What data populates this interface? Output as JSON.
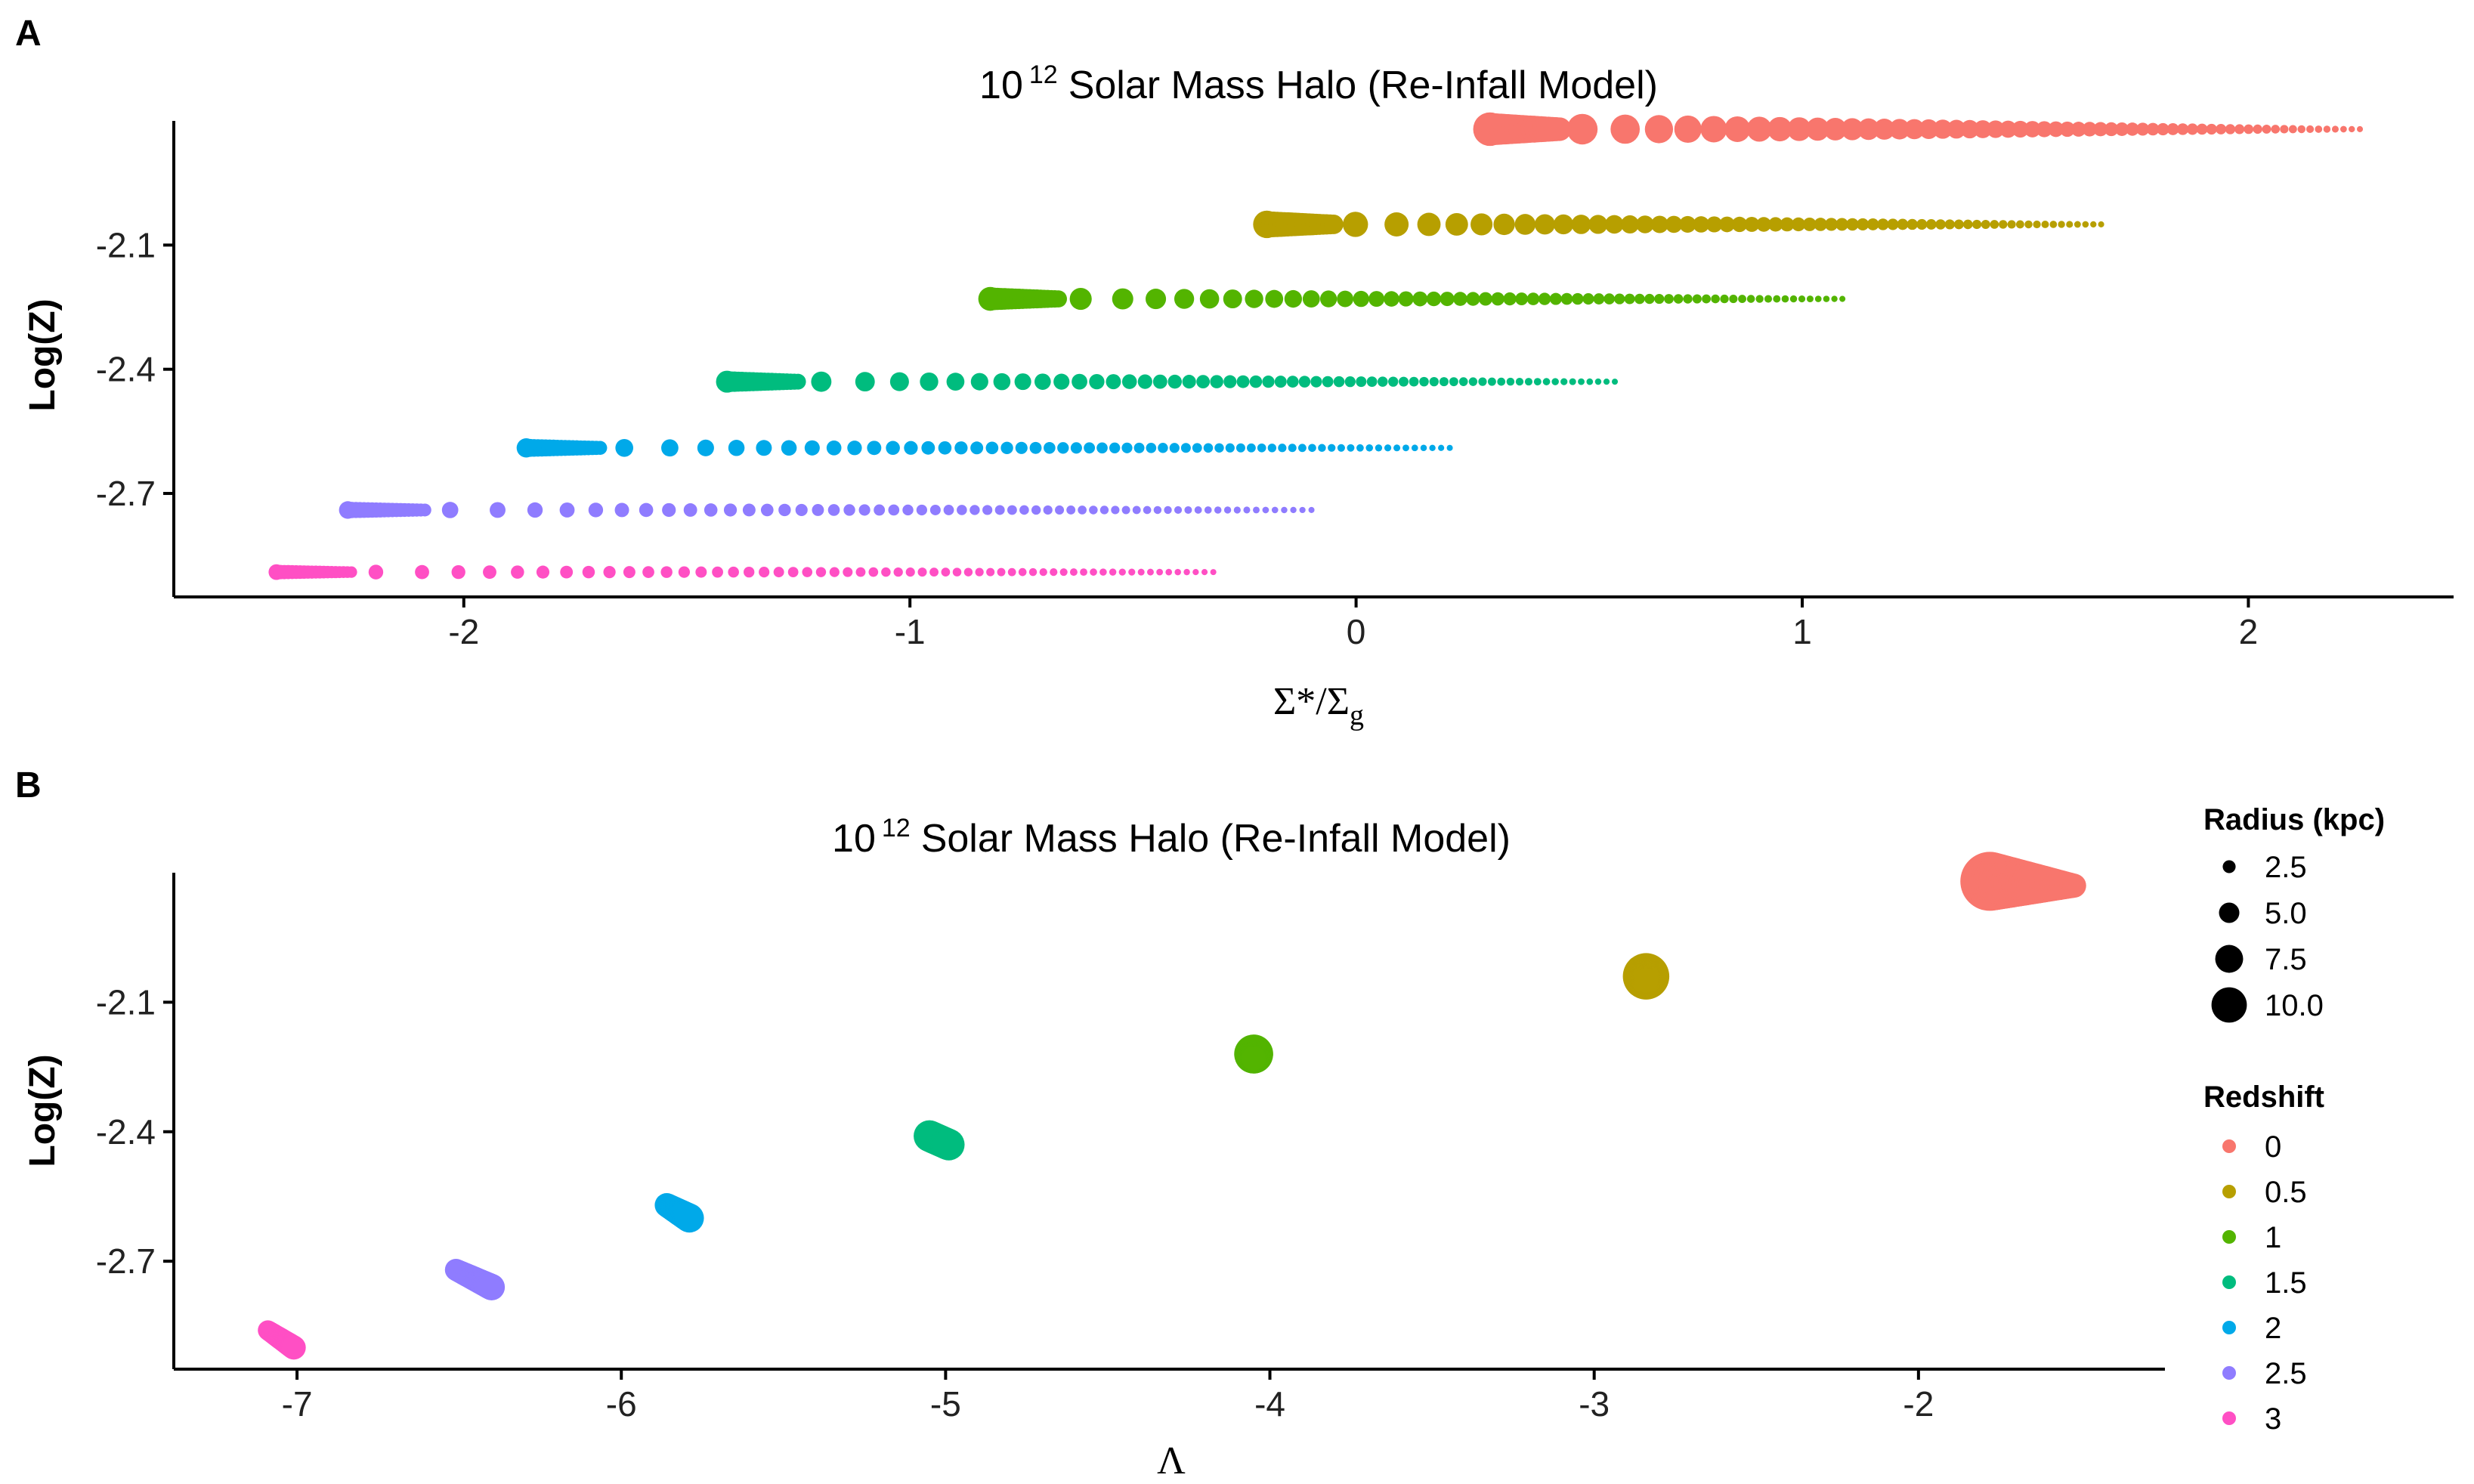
{
  "chart_data": [
    {
      "panel": "A",
      "type": "scatter",
      "title_base": "10",
      "title_sup": "12",
      "title_rest": "Solar Mass Halo (Re-Infall Model)",
      "xlabel_main": "Σ*/Σ",
      "xlabel_sub": "g",
      "ylabel": "Log(Z)",
      "xlim": [
        -2.65,
        2.46
      ],
      "ylim": [
        -2.95,
        -1.8
      ],
      "xticks": [
        -2,
        -1,
        0,
        1,
        2
      ],
      "xtick_labels": [
        "-2",
        "-1",
        "0",
        "1",
        "2"
      ],
      "yticks": [
        -2.1,
        -2.4,
        -2.7
      ],
      "ytick_labels": [
        "-2.1",
        "-2.4",
        "-2.7"
      ],
      "grid": false,
      "series": [
        {
          "name": "0",
          "color": "#F8766D",
          "logZ": -1.82,
          "x_start": 0.3,
          "x_end": 2.25,
          "radius_start": 10.0
        },
        {
          "name": "0.5",
          "color": "#B79F00",
          "logZ": -2.05,
          "x_start": -0.2,
          "x_end": 1.67,
          "radius_start": 7.8
        },
        {
          "name": "1",
          "color": "#53B400",
          "logZ": -2.23,
          "x_start": -0.82,
          "x_end": 1.09,
          "radius_start": 6.5
        },
        {
          "name": "1.5",
          "color": "#00BC7E",
          "logZ": -2.43,
          "x_start": -1.41,
          "x_end": 0.58,
          "radius_start": 5.8
        },
        {
          "name": "2",
          "color": "#00A9E9",
          "logZ": -2.59,
          "x_start": -1.86,
          "x_end": 0.21,
          "radius_start": 4.8
        },
        {
          "name": "2.5",
          "color": "#8F7CFF",
          "logZ": -2.74,
          "x_start": -2.26,
          "x_end": -0.1,
          "radius_start": 4.2
        },
        {
          "name": "3",
          "color": "#FF4FC4",
          "logZ": -2.89,
          "x_start": -2.42,
          "x_end": -0.32,
          "radius_start": 3.5
        }
      ]
    },
    {
      "panel": "B",
      "type": "scatter",
      "title_base": "10",
      "title_sup": "12",
      "title_rest": "Solar Mass Halo (Re-Infall Model)",
      "xlabel_main": "Λ",
      "ylabel": "Log(Z)",
      "xlim": [
        -7.38,
        -1.24
      ],
      "ylim": [
        -2.95,
        -1.8
      ],
      "xticks": [
        -7,
        -6,
        -5,
        -4,
        -3,
        -2
      ],
      "xtick_labels": [
        "-7",
        "-6",
        "-5",
        "-4",
        "-3",
        "-2"
      ],
      "yticks": [
        -2.1,
        -2.4,
        -2.7
      ],
      "ytick_labels": [
        "-2.1",
        "-2.4",
        "-2.7"
      ],
      "grid": false,
      "series": [
        {
          "name": "0",
          "color": "#F8766D",
          "points": [
            [
              -1.78,
              -1.82,
              10.0
            ],
            [
              -1.52,
              -1.83,
              3.0
            ]
          ]
        },
        {
          "name": "0.5",
          "color": "#B79F00",
          "points": [
            [
              -2.84,
              -2.04,
              7.5
            ],
            [
              -2.84,
              -2.05,
              3.0
            ]
          ]
        },
        {
          "name": "1",
          "color": "#53B400",
          "points": [
            [
              -4.05,
              -2.22,
              6.0
            ],
            [
              -4.05,
              -2.23,
              3.0
            ]
          ]
        },
        {
          "name": "1.5",
          "color": "#00BC7E",
          "points": [
            [
              -5.05,
              -2.41,
              4.5
            ],
            [
              -4.99,
              -2.43,
              4.5
            ]
          ]
        },
        {
          "name": "2",
          "color": "#00A9E9",
          "points": [
            [
              -5.86,
              -2.57,
              3.0
            ],
            [
              -5.79,
              -2.6,
              4.0
            ]
          ]
        },
        {
          "name": "2.5",
          "color": "#8F7CFF",
          "points": [
            [
              -6.51,
              -2.72,
              2.6
            ],
            [
              -6.4,
              -2.76,
              3.5
            ]
          ]
        },
        {
          "name": "3",
          "color": "#FF4FC4",
          "points": [
            [
              -7.09,
              -2.86,
              2.2
            ],
            [
              -7.01,
              -2.9,
              3.0
            ]
          ]
        }
      ]
    }
  ],
  "legend": {
    "placement": "right",
    "size_title": "Radius (kpc)",
    "size_entries": [
      {
        "label": "2.5",
        "value": 2.5
      },
      {
        "label": "5.0",
        "value": 5.0
      },
      {
        "label": "7.5",
        "value": 7.5
      },
      {
        "label": "10.0",
        "value": 10.0
      }
    ],
    "color_title": "Redshift",
    "color_entries": [
      {
        "label": "0",
        "color": "#F8766D"
      },
      {
        "label": "0.5",
        "color": "#B79F00"
      },
      {
        "label": "1",
        "color": "#53B400"
      },
      {
        "label": "1.5",
        "color": "#00BC7E"
      },
      {
        "label": "2",
        "color": "#00A9E9"
      },
      {
        "label": "2.5",
        "color": "#8F7CFF"
      },
      {
        "label": "3",
        "color": "#FF4FC4"
      }
    ]
  }
}
